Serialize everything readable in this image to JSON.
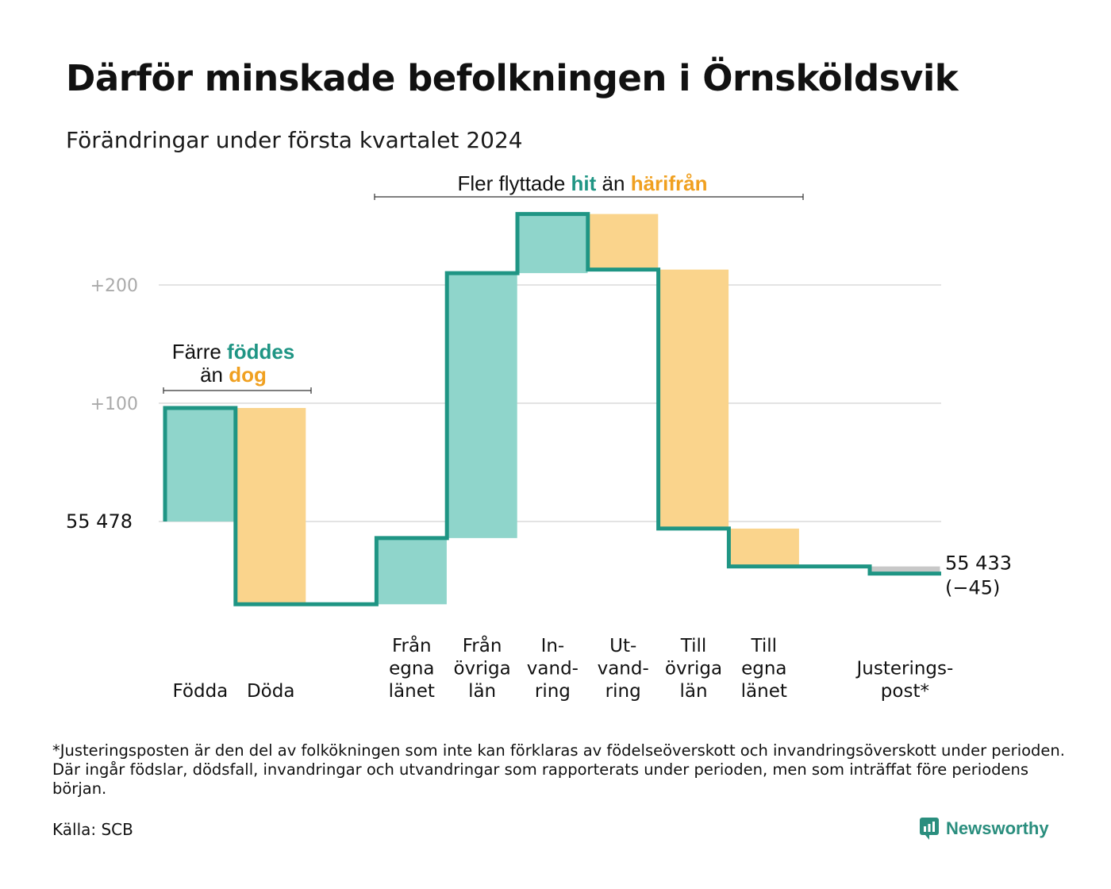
{
  "title": "Därför minskade befolkningen i Örnsköldsvik",
  "subtitle": "Förändringar under första kvartalet 2024",
  "footnote": "*Justeringsposten är den del av folkökningen som inte kan förklaras av födelseöverskott och invandringsöverskott under perioden. Där ingår födslar, dödsfall, invandringar och utvandringar som rapporterats under perioden, men som inträffat före periodens början.",
  "source": "Källa: SCB",
  "brand": "Newsworthy",
  "colors": {
    "increase": "#8fd5cb",
    "decrease": "#fad48c",
    "adjustment": "#c8c8c8",
    "line": "#1f9584",
    "teal_text": "#1f9584",
    "orange_text": "#f0a020",
    "grid": "#e3e3e3",
    "tick_text": "#aaaaaa"
  },
  "annotations": {
    "birth": {
      "part1": "Färre ",
      "highlight1": "föddes",
      "part2": "än ",
      "highlight2": "dog"
    },
    "migration": {
      "part1": "Fler flyttade ",
      "highlight1": "hit",
      "part2": " än ",
      "highlight2": "härifrån"
    }
  },
  "chart_data": {
    "type": "waterfall",
    "start": {
      "value": 55478,
      "label": "55  478"
    },
    "end": {
      "value": 55433,
      "label": "55 433",
      "change_label": "(−45)"
    },
    "y_ticks": [
      {
        "value": 200,
        "label": "+200"
      },
      {
        "value": 100,
        "label": "+100"
      }
    ],
    "grid": true,
    "steps": [
      {
        "category": [
          "Födda"
        ],
        "value": 96,
        "kind": "increase",
        "slot": 0
      },
      {
        "category": [
          "Döda"
        ],
        "value": -166,
        "kind": "decrease",
        "slot": 1
      },
      {
        "category": [
          "Från",
          "egna",
          "länet"
        ],
        "value": 56,
        "kind": "increase",
        "slot": 3
      },
      {
        "category": [
          "Från",
          "övriga",
          "län"
        ],
        "value": 224,
        "kind": "increase",
        "slot": 4
      },
      {
        "category": [
          "In-",
          "vand-",
          "ring"
        ],
        "value": 50,
        "kind": "increase",
        "slot": 5
      },
      {
        "category": [
          "Ut-",
          "vand-",
          "ring"
        ],
        "value": -47,
        "kind": "decrease",
        "slot": 6
      },
      {
        "category": [
          "Till",
          "övriga",
          "län"
        ],
        "value": -219,
        "kind": "decrease",
        "slot": 7
      },
      {
        "category": [
          "Till",
          "egna",
          "länet"
        ],
        "value": -32,
        "kind": "decrease",
        "slot": 8
      },
      {
        "category": [
          "Justerings-",
          "post*"
        ],
        "value": -6,
        "kind": "adjustment",
        "slot": 10
      }
    ]
  }
}
